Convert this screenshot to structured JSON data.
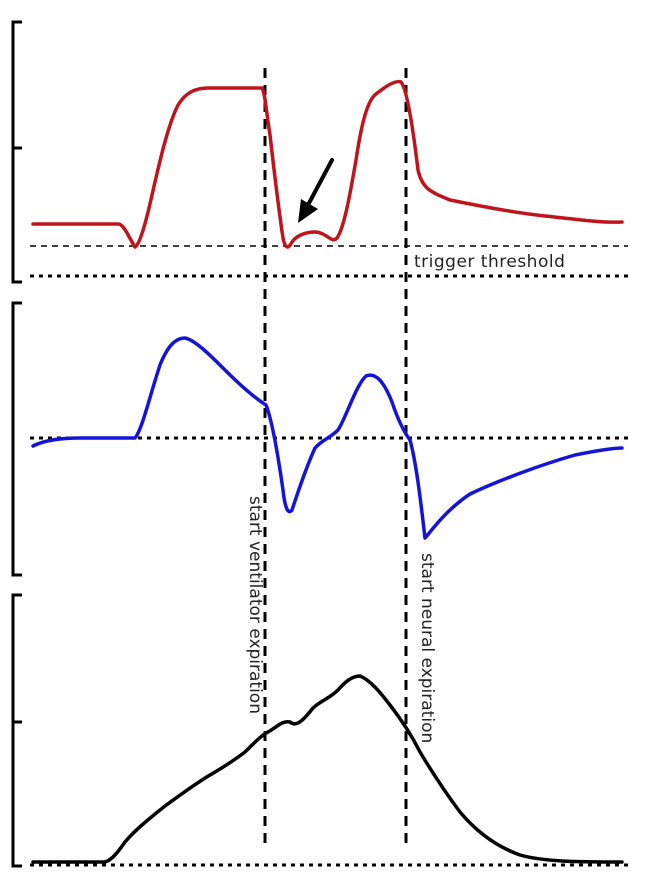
{
  "labels": {
    "trigger_threshold": "trigger threshold",
    "start_ventilator_expiration": "start ventilator expiration",
    "start_neural_expiration": "start neural expiration"
  },
  "colors": {
    "pressure": "#c0141c",
    "flow": "#1414d8",
    "neural": "#000000",
    "annotation": "#000000"
  },
  "icons": {
    "arrow": "arrow-down-left-icon"
  }
}
